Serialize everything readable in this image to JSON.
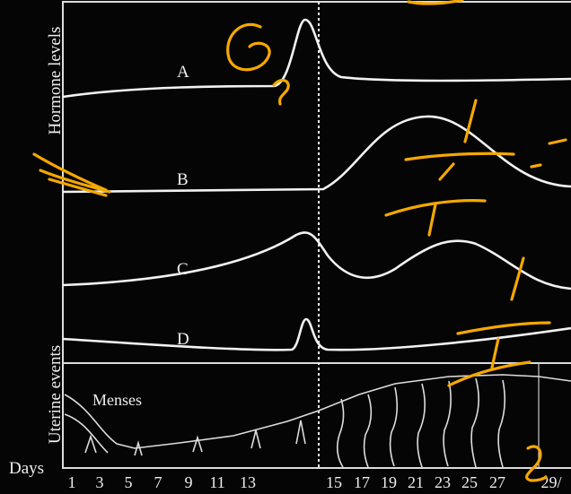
{
  "axis_labels": {
    "hormones": "Hormone levels",
    "uterine": "Uterine events",
    "days": "Days"
  },
  "curves": [
    {
      "label": "A"
    },
    {
      "label": "B"
    },
    {
      "label": "C"
    },
    {
      "label": "D"
    }
  ],
  "menses": "Menses",
  "days": [
    "1",
    "3",
    "5",
    "7",
    "9",
    "11",
    "13",
    "15",
    "17",
    "19",
    "21",
    "23",
    "25",
    "27",
    "29/"
  ]
}
